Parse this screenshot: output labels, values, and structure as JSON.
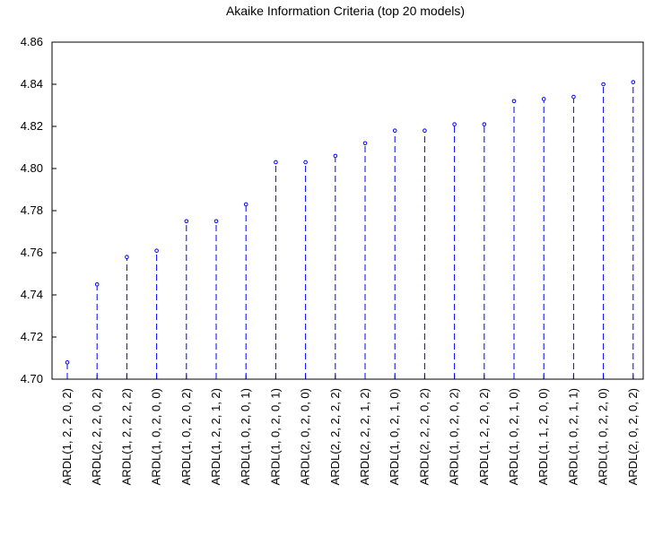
{
  "chart_data": {
    "type": "scatter",
    "style": "dropline",
    "title": "Akaike Information Criteria (top 20 models)",
    "xlabel": "",
    "ylabel": "",
    "ylim": [
      4.7,
      4.86
    ],
    "yticks": [
      4.7,
      4.72,
      4.74,
      4.76,
      4.78,
      4.8,
      4.82,
      4.84,
      4.86
    ],
    "ytick_labels": [
      "4.70",
      "4.72",
      "4.74",
      "4.76",
      "4.78",
      "4.80",
      "4.82",
      "4.84",
      "4.86"
    ],
    "grid": false,
    "legend": "none",
    "categories": [
      "ARDL(1, 2, 2, 0, 2)",
      "ARDL(2, 2, 2, 0, 2)",
      "ARDL(1, 2, 2, 2, 2)",
      "ARDL(1, 0, 2, 0, 0)",
      "ARDL(1, 0, 2, 0, 2)",
      "ARDL(1, 2, 2, 1, 2)",
      "ARDL(1, 0, 2, 0, 1)",
      "ARDL(1, 0, 2, 0, 1)",
      "ARDL(2, 0, 2, 0, 0)",
      "ARDL(2, 2, 2, 2, 2)",
      "ARDL(2, 2, 2, 1, 2)",
      "ARDL(1, 0, 2, 1, 0)",
      "ARDL(2, 2, 2, 0, 2)",
      "ARDL(1, 0, 2, 0, 2)",
      "ARDL(1, 2, 2, 0, 2)",
      "ARDL(1, 0, 2, 1, 0)",
      "ARDL(1, 1, 2, 0, 0)",
      "ARDL(1, 0, 2, 1, 1)",
      "ARDL(1, 0, 2, 2, 0)",
      "ARDL(2, 0, 2, 0, 2)"
    ],
    "values": [
      4.708,
      4.745,
      4.758,
      4.761,
      4.775,
      4.775,
      4.783,
      4.803,
      4.803,
      4.806,
      4.812,
      4.818,
      4.818,
      4.821,
      4.821,
      4.832,
      4.833,
      4.834,
      4.84,
      4.841
    ],
    "colors": {
      "series": "#0000ff",
      "axis": "#000000",
      "background": "#ffffff"
    }
  }
}
